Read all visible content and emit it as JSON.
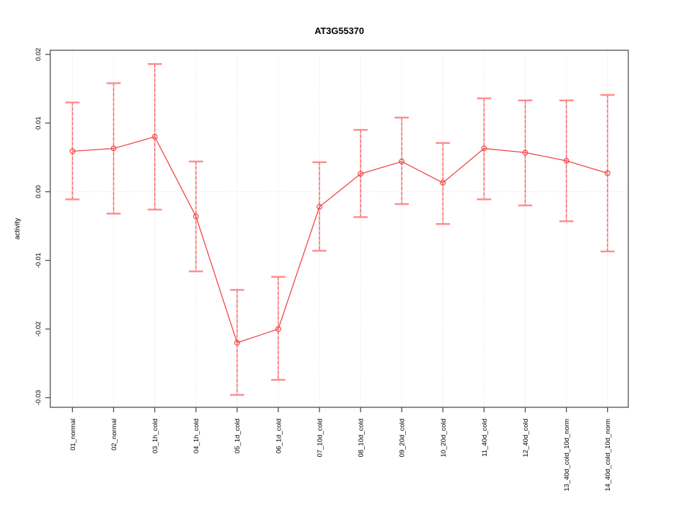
{
  "chart_data": {
    "type": "line",
    "title": "AT3G55370",
    "xlabel": "",
    "ylabel": "activity",
    "legend": "none",
    "grid": {
      "vertical": "per-category",
      "horizontal_at": 0,
      "style": "dotted"
    },
    "categories": [
      "01_normal",
      "02_normal",
      "03_1h_cold",
      "04_1h_cold",
      "05_1d_cold",
      "06_1d_cold",
      "07_10d_cold",
      "08_10d_cold",
      "09_20d_cold",
      "10_20d_cold",
      "11_40d_cold",
      "12_40d_cold",
      "13_40d_cold_10d_norm",
      "14_40d_cold_10d_norm"
    ],
    "series": [
      {
        "name": "activity",
        "marker": "open-circle",
        "values": [
          0.0059,
          0.0063,
          0.008,
          -0.0036,
          -0.022,
          -0.02,
          -0.0022,
          0.0026,
          0.0044,
          0.0013,
          0.0063,
          0.0057,
          0.0045,
          0.0027
        ],
        "error_upper": [
          0.013,
          0.0158,
          0.0186,
          0.0044,
          -0.0143,
          -0.0124,
          0.0043,
          0.009,
          0.0108,
          0.0071,
          0.0136,
          0.0133,
          0.0133,
          0.0141
        ],
        "error_lower": [
          -0.0011,
          -0.0032,
          -0.0026,
          -0.0116,
          -0.0296,
          -0.0274,
          -0.0086,
          -0.0037,
          -0.0018,
          -0.0047,
          -0.0011,
          -0.002,
          -0.0043,
          -0.0087
        ]
      }
    ],
    "yticks": [
      0.02,
      0.01,
      0,
      -0.01,
      -0.02,
      -0.03
    ],
    "ytick_labels": [
      "0.02",
      "0.01",
      "0.00",
      "-0.01",
      "-0.02",
      "-0.03"
    ],
    "ylim": [
      -0.0314,
      0.0206
    ],
    "colors": {
      "series": "#f04545",
      "errorbar_base": "#ffb0b0",
      "errorbar_dash": "#f04545",
      "errorbar_cap": "#ff8d8d",
      "grid": "#d8d8d8",
      "frame": "#4d4d4d",
      "text": "#000000",
      "background": "#ffffff"
    }
  }
}
